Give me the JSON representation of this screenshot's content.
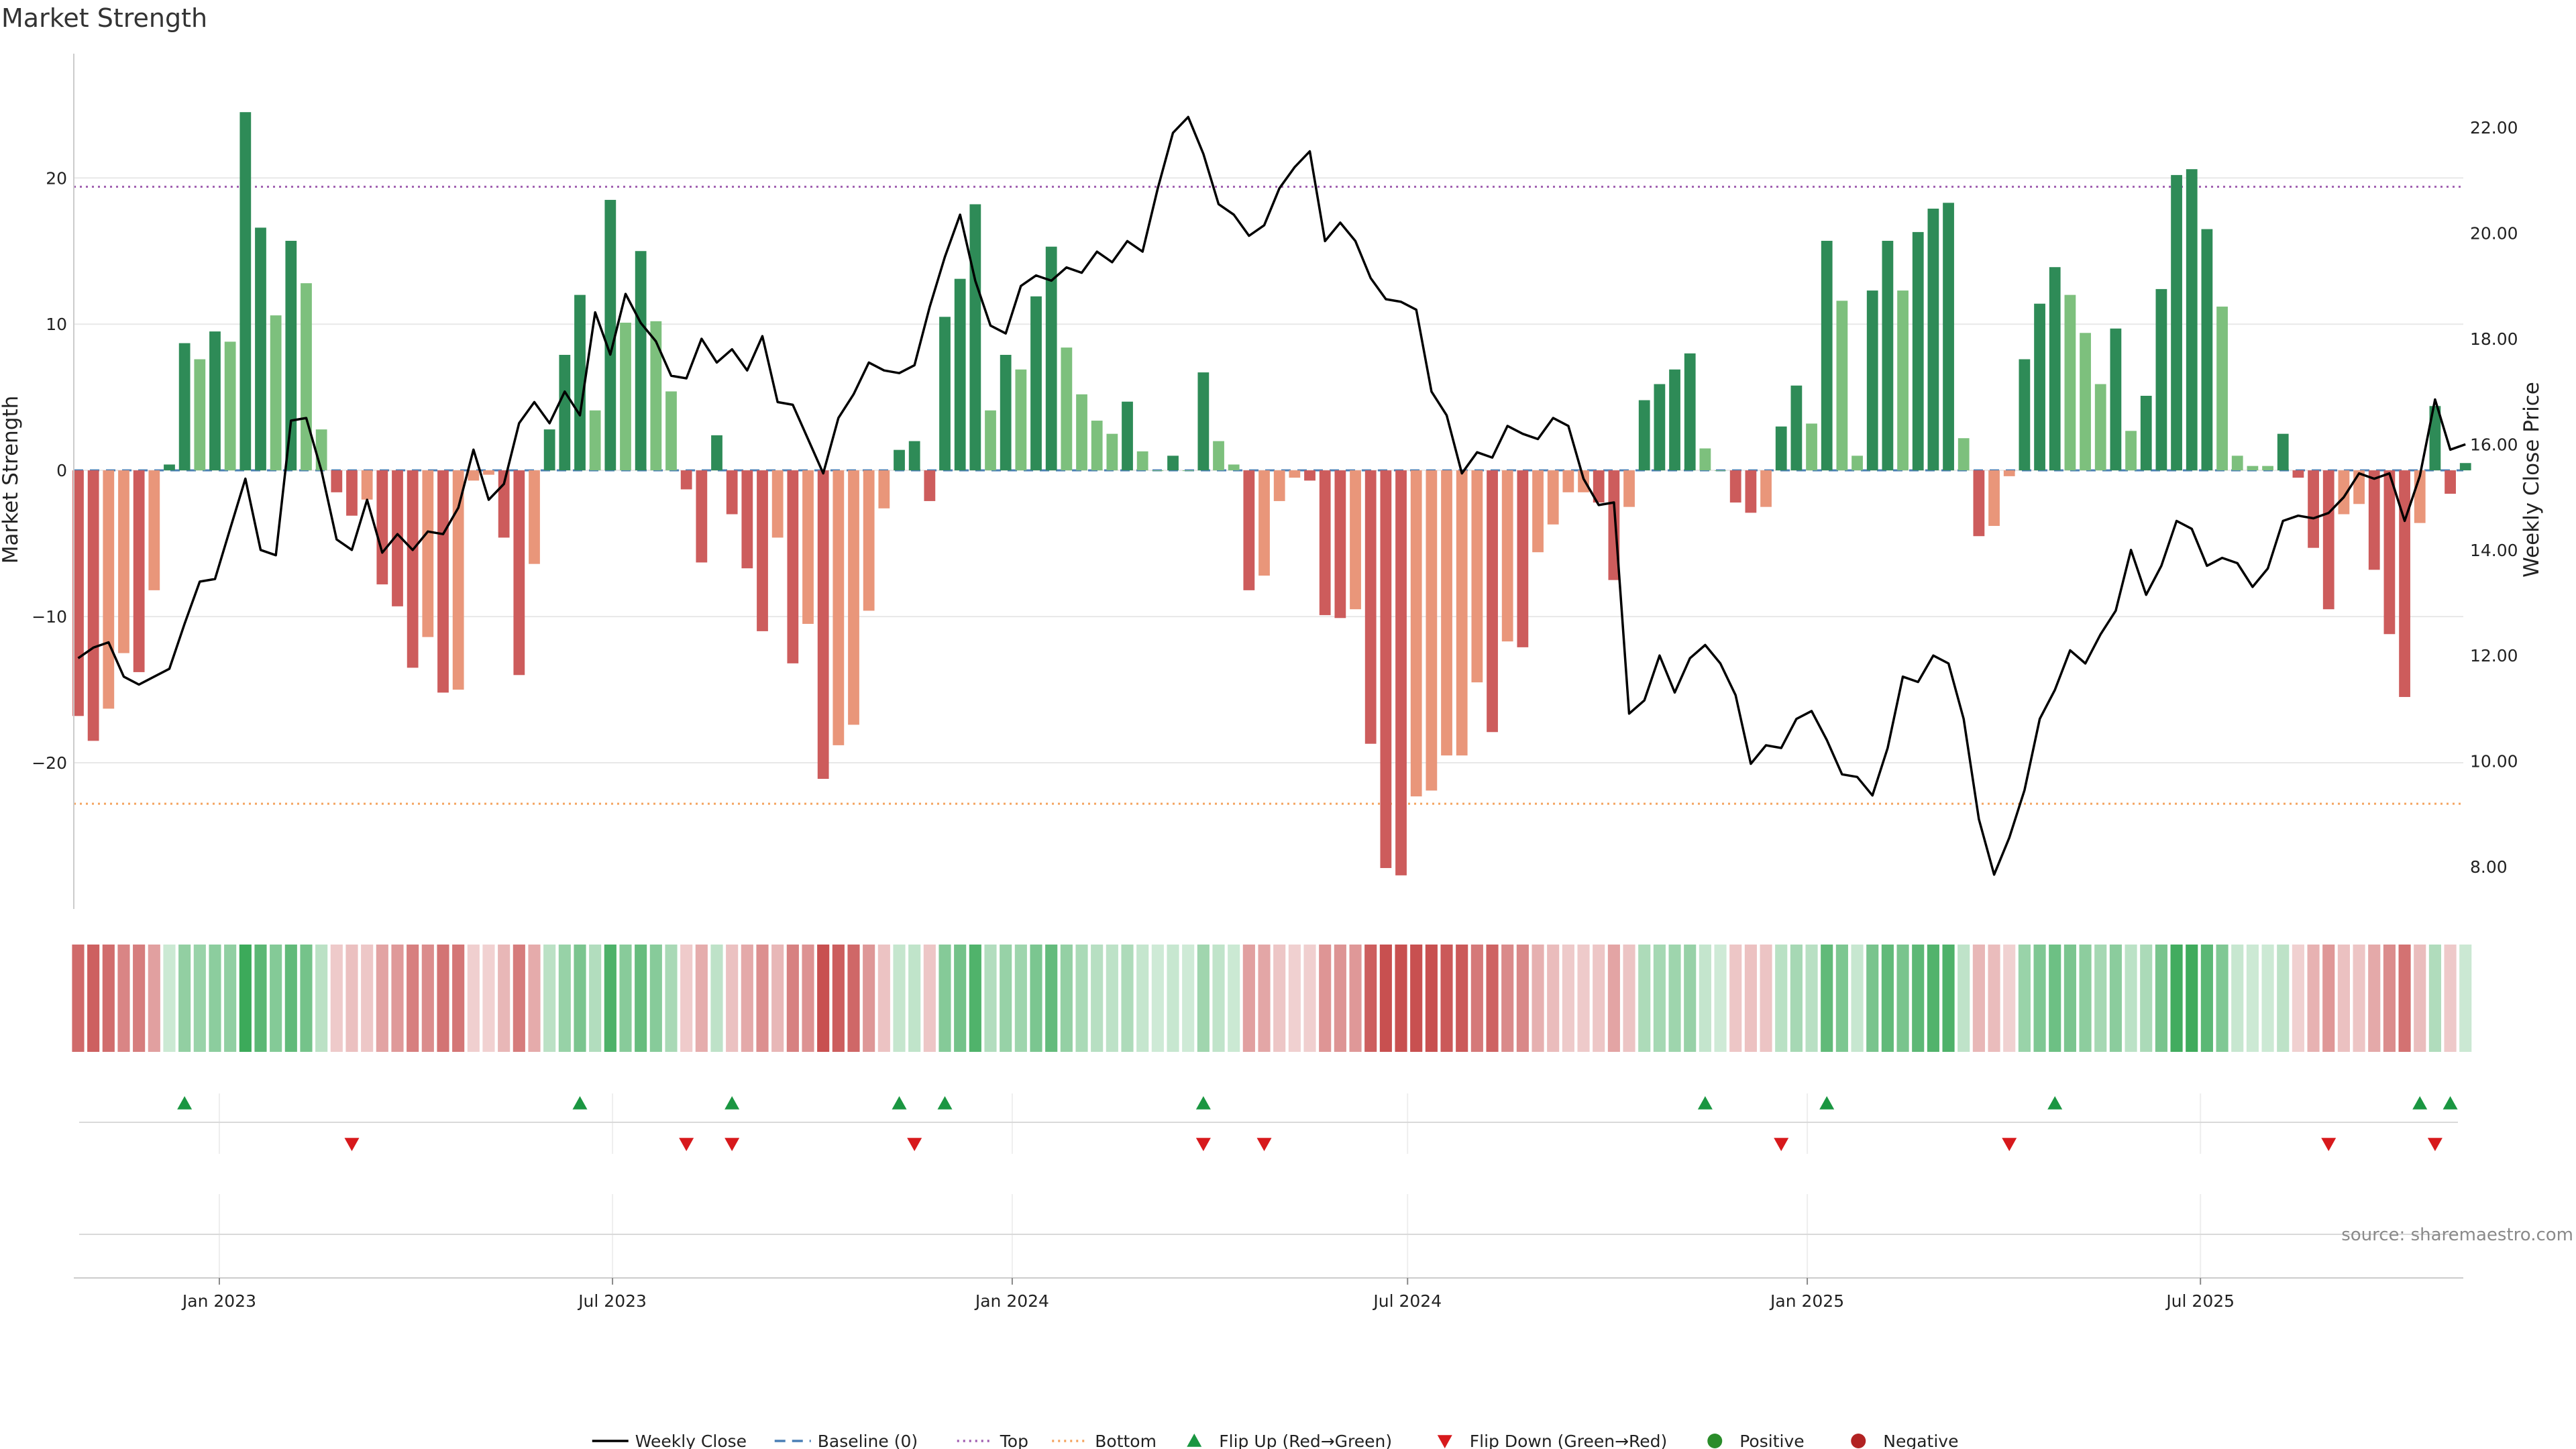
{
  "chart_data": {
    "type": "bar",
    "title": "Market Strength",
    "ylabel": "Market Strength",
    "y2label": "Weekly Close Price",
    "source": "source: sharemaestro.com",
    "ylim": [
      -30,
      28.5
    ],
    "y2lim": [
      7.2,
      23.4
    ],
    "yticks": [
      -20,
      -10,
      0,
      10,
      20
    ],
    "y2ticks": [
      "8.00",
      "10.00",
      "12.00",
      "14.00",
      "16.00",
      "18.00",
      "20.00",
      "22.00"
    ],
    "xlim": [
      "2022-10-26",
      "2025-10-30"
    ],
    "xticks": [
      {
        "date": "2023-01-01",
        "label": "Jan 2023"
      },
      {
        "date": "2023-07-01",
        "label": "Jul 2023"
      },
      {
        "date": "2024-01-01",
        "label": "Jan 2024"
      },
      {
        "date": "2024-07-01",
        "label": "Jul 2024"
      },
      {
        "date": "2025-01-01",
        "label": "Jan 2025"
      },
      {
        "date": "2025-07-01",
        "label": "Jul 2025"
      }
    ],
    "start_date": "2022-10-28",
    "interval_days": 7,
    "top_line": 19.4,
    "bottom_line": -22.8,
    "strength": [
      -16.8,
      -18.5,
      -16.3,
      -12.5,
      -13.8,
      -8.2,
      0.4,
      8.7,
      7.6,
      9.5,
      8.8,
      24.5,
      16.6,
      10.6,
      15.7,
      12.8,
      2.8,
      -1.5,
      -3.1,
      -2.0,
      -7.8,
      -9.3,
      -13.5,
      -11.4,
      -15.2,
      -15.0,
      -0.7,
      -0.3,
      -4.6,
      -14.0,
      -6.4,
      2.8,
      7.9,
      12.0,
      4.1,
      18.5,
      10.1,
      15.0,
      10.2,
      5.4,
      -1.3,
      -6.3,
      2.4,
      -3.0,
      -6.7,
      -11.0,
      -4.6,
      -13.2,
      -10.5,
      -21.1,
      -18.8,
      -17.4,
      -9.6,
      -2.6,
      1.4,
      2.0,
      -2.1,
      10.5,
      13.1,
      18.2,
      4.1,
      7.9,
      6.9,
      11.9,
      15.3,
      8.4,
      5.2,
      3.4,
      2.5,
      4.7,
      1.3,
      0,
      1.0,
      0,
      6.7,
      2.0,
      0.4,
      -8.2,
      -7.2,
      -2.1,
      -0.5,
      -0.7,
      -9.9,
      -10.1,
      -9.5,
      -18.7,
      -27.2,
      -27.7,
      -22.3,
      -21.9,
      -19.5,
      -19.5,
      -14.5,
      -17.9,
      -11.7,
      -12.1,
      -5.6,
      -3.7,
      -1.5,
      -1.5,
      -2.2,
      -7.5,
      -2.5,
      4.8,
      5.9,
      6.9,
      8.0,
      1.5,
      0,
      -2.2,
      -2.9,
      -2.5,
      3.0,
      5.8,
      3.2,
      15.7,
      11.6,
      1.0,
      12.3,
      15.7,
      12.3,
      16.3,
      17.9,
      18.3,
      2.2,
      -4.5,
      -3.8,
      -0.4,
      7.6,
      11.4,
      13.9,
      12.0,
      9.4,
      5.9,
      9.7,
      2.7,
      5.1,
      12.4,
      20.2,
      20.6,
      16.5,
      11.2,
      1.0,
      0.3,
      0.3,
      2.5,
      -0.5,
      -5.3,
      -9.5,
      -3.0,
      -2.3,
      -6.8,
      -11.2,
      -15.5,
      -3.6,
      4.4,
      -1.6,
      0.5
    ],
    "close": [
      11.95,
      12.15,
      12.25,
      11.6,
      11.45,
      11.6,
      11.75,
      12.6,
      13.4,
      13.45,
      14.4,
      15.35,
      14.0,
      13.9,
      16.45,
      16.5,
      15.5,
      14.2,
      14.0,
      14.95,
      13.95,
      14.3,
      14.0,
      14.35,
      14.3,
      14.8,
      15.9,
      14.95,
      15.25,
      16.4,
      16.8,
      16.4,
      17.0,
      16.55,
      18.5,
      17.7,
      18.85,
      18.3,
      17.95,
      17.3,
      17.25,
      18.0,
      17.55,
      17.8,
      17.4,
      18.05,
      16.8,
      16.75,
      16.1,
      15.45,
      16.5,
      16.95,
      17.55,
      17.4,
      17.35,
      17.5,
      18.6,
      19.55,
      20.35,
      19.1,
      18.25,
      18.1,
      19.0,
      19.2,
      19.1,
      19.35,
      19.25,
      19.65,
      19.45,
      19.85,
      19.65,
      20.85,
      21.9,
      22.2,
      21.5,
      20.55,
      20.35,
      19.95,
      20.15,
      20.85,
      21.25,
      21.55,
      19.85,
      20.2,
      19.85,
      19.15,
      18.75,
      18.7,
      18.55,
      17.0,
      16.55,
      15.45,
      15.85,
      15.75,
      16.35,
      16.2,
      16.1,
      16.5,
      16.35,
      15.35,
      14.85,
      14.9,
      10.9,
      11.15,
      12.0,
      11.3,
      11.95,
      12.2,
      11.85,
      11.25,
      9.95,
      10.3,
      10.25,
      10.8,
      10.95,
      10.4,
      9.75,
      9.7,
      9.35,
      10.25,
      11.6,
      11.5,
      12.0,
      11.85,
      10.8,
      8.9,
      7.85,
      8.55,
      9.45,
      10.8,
      11.35,
      12.1,
      11.85,
      12.4,
      12.85,
      14.0,
      13.15,
      13.7,
      14.55,
      14.4,
      13.7,
      13.85,
      13.75,
      13.3,
      13.65,
      14.55,
      14.65,
      14.6,
      14.7,
      15.0,
      15.45,
      15.35,
      15.45,
      14.55,
      15.4,
      16.85,
      15.9,
      16.0
    ],
    "flip_up_dates": [
      "2022-12-16",
      "2023-06-16",
      "2023-08-25",
      "2023-11-10",
      "2023-12-01",
      "2024-03-29",
      "2024-11-15",
      "2025-01-10",
      "2025-04-25",
      "2025-10-10",
      "2025-10-24"
    ],
    "flip_down_dates": [
      "2023-03-03",
      "2023-08-04",
      "2023-08-25",
      "2023-11-17",
      "2024-03-29",
      "2024-04-26",
      "2024-12-20",
      "2025-04-04",
      "2025-08-29",
      "2025-10-17"
    ],
    "legend": [
      {
        "label": "Weekly Close",
        "type": "line",
        "color": "#000000"
      },
      {
        "label": "Baseline (0)",
        "type": "dash",
        "color": "#4a7fb5"
      },
      {
        "label": "Top",
        "type": "dot",
        "color": "#a05fb0"
      },
      {
        "label": "Bottom",
        "type": "dot",
        "color": "#f4a460"
      },
      {
        "label": "Flip Up (Red→Green)",
        "type": "tri-up",
        "color": "#1a9641"
      },
      {
        "label": "Flip Down (Green→Red)",
        "type": "tri-down",
        "color": "#d7191c"
      },
      {
        "label": "Positive",
        "type": "circle",
        "color": "#2a8c2a"
      },
      {
        "label": "Negative",
        "type": "circle",
        "color": "#b22222"
      }
    ],
    "legend_position": "bottom-center",
    "grid": true
  }
}
